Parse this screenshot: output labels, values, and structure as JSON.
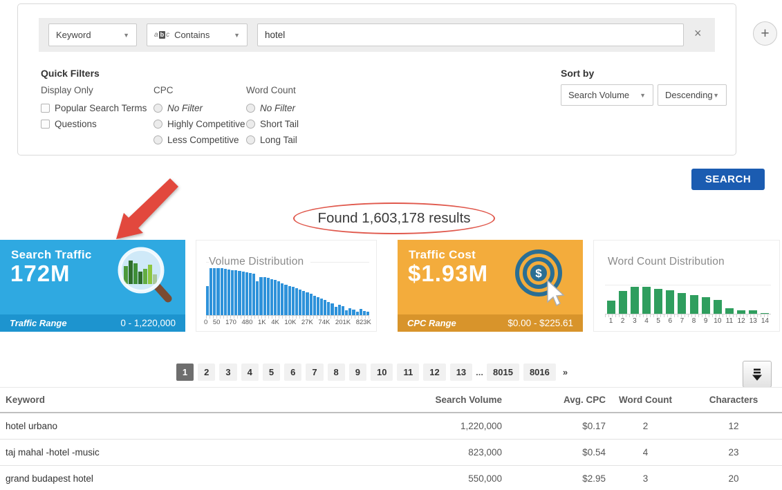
{
  "filter": {
    "field": "Keyword",
    "operator": "Contains",
    "operator_icon": "abc",
    "query": "hotel",
    "clear": "×",
    "add": "+"
  },
  "quick_filters": {
    "title": "Quick Filters",
    "groups": [
      {
        "label": "Display Only",
        "type": "checkbox",
        "options": [
          {
            "label": "Popular Search Terms",
            "checked": false
          },
          {
            "label": "Questions",
            "checked": false
          }
        ]
      },
      {
        "label": "CPC",
        "type": "radio",
        "options": [
          {
            "label": "No Filter",
            "italic": true
          },
          {
            "label": "Highly Competitive"
          },
          {
            "label": "Less Competitive"
          }
        ]
      },
      {
        "label": "Word Count",
        "type": "radio",
        "options": [
          {
            "label": "No Filter",
            "italic": true
          },
          {
            "label": "Short Tail"
          },
          {
            "label": "Long Tail"
          }
        ]
      }
    ]
  },
  "sort": {
    "title": "Sort by",
    "field": "Search Volume",
    "direction": "Descending"
  },
  "search_button": "SEARCH",
  "results_banner": "Found 1,603,178 results",
  "cards": {
    "search_traffic": {
      "title": "Search Traffic",
      "value": "172M",
      "range_label": "Traffic Range",
      "range_value": "0 - 1,220,000",
      "icon": "magnifier-bar-chart-icon"
    },
    "traffic_cost": {
      "title": "Traffic Cost",
      "value": "$1.93M",
      "range_label": "CPC Range",
      "range_value": "$0.00 - $225.61",
      "icon": "dollar-target-cursor-icon"
    }
  },
  "chart_data": [
    {
      "name": "volume_distribution",
      "type": "bar",
      "title": "Volume Distribution",
      "bar_color": "#2e92da",
      "x_tick_labels": [
        "0",
        "50",
        "170",
        "480",
        "1K",
        "4K",
        "10K",
        "27K",
        "74K",
        "201K",
        "823K"
      ],
      "values_pct": [
        55,
        100,
        93,
        90,
        88,
        87,
        86,
        85,
        84,
        83,
        82,
        80,
        79,
        78,
        64,
        72,
        71,
        70,
        68,
        66,
        63,
        60,
        57,
        55,
        53,
        51,
        48,
        45,
        43,
        40,
        37,
        34,
        31,
        28,
        25,
        22,
        15,
        19,
        17,
        9,
        13,
        11,
        7,
        12,
        8,
        6
      ],
      "ylim": [
        0,
        100
      ],
      "grid": "top-line"
    },
    {
      "name": "word_count_distribution",
      "type": "bar",
      "title": "Word Count Distribution",
      "bar_color": "#2f9e5e",
      "categories": [
        "1",
        "2",
        "3",
        "4",
        "5",
        "6",
        "7",
        "8",
        "9",
        "10",
        "11",
        "12",
        "13",
        "14"
      ],
      "values_pct": [
        48,
        83,
        97,
        97,
        90,
        85,
        76,
        68,
        60,
        50,
        21,
        12,
        13,
        3
      ],
      "ylim": [
        0,
        100
      ],
      "grid": "top-line"
    }
  ],
  "pagination": {
    "active": "1",
    "pages": [
      "1",
      "2",
      "3",
      "4",
      "5",
      "6",
      "7",
      "8",
      "9",
      "10",
      "11",
      "12",
      "13",
      "...",
      "8015",
      "8016"
    ],
    "next": "»"
  },
  "download_icon": "download-icon",
  "table": {
    "columns": [
      "Keyword",
      "Search Volume",
      "Avg. CPC",
      "Word Count",
      "Characters"
    ],
    "rows": [
      [
        "hotel urbano",
        "1,220,000",
        "$0.17",
        "2",
        "12"
      ],
      [
        "taj mahal -hotel -music",
        "823,000",
        "$0.54",
        "4",
        "23"
      ],
      [
        "grand budapest hotel",
        "550,000",
        "$2.95",
        "3",
        "20"
      ]
    ]
  },
  "colors": {
    "card_blue": "#2fa9e1",
    "card_blue_strip": "#1d94cf",
    "card_orange": "#f3ac3c",
    "card_orange_strip": "#d8942b",
    "bar_blue": "#2e92da",
    "bar_green": "#2f9e5e",
    "search_button": "#1b5cb1",
    "highlight_red": "#e0584c"
  }
}
